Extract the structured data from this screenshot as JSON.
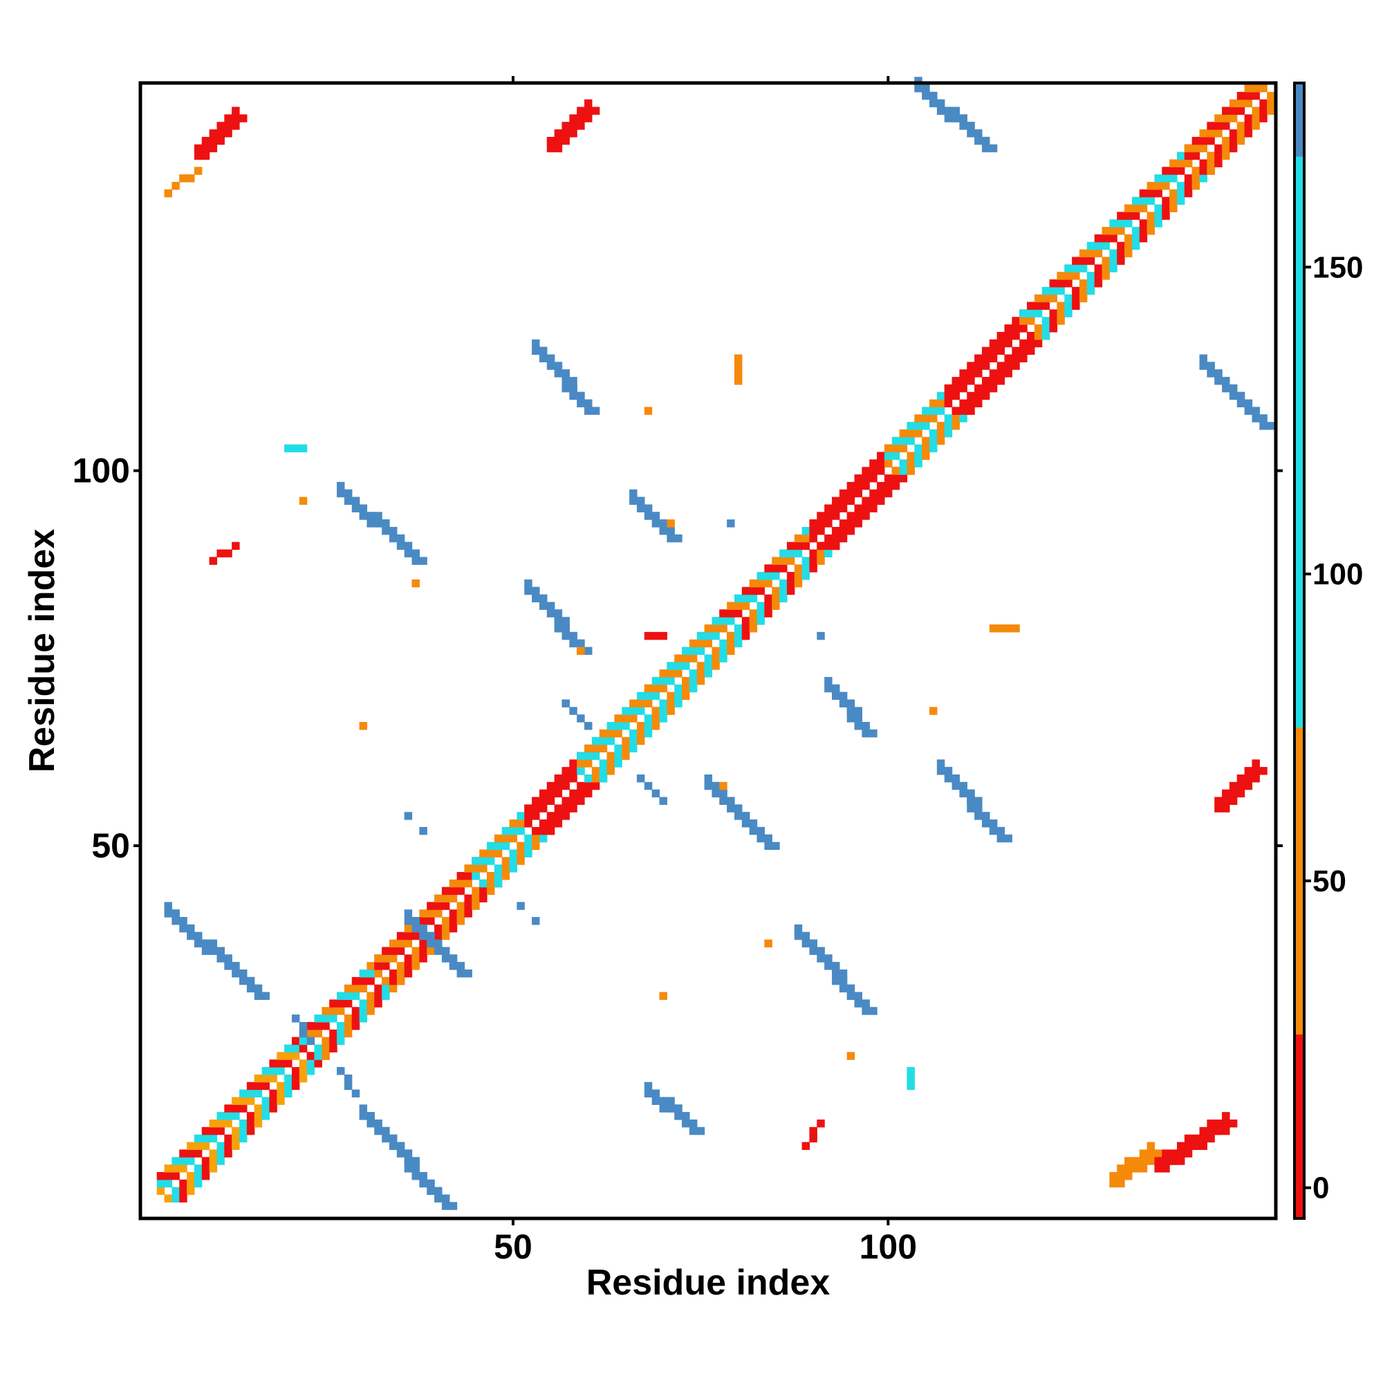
{
  "chart_data": {
    "type": "heatmap",
    "title": "",
    "xlabel": "Residue index",
    "ylabel": "Residue index",
    "xlim": [
      1,
      151
    ],
    "ylim": [
      1,
      151
    ],
    "xticks": [
      50,
      100
    ],
    "yticks": [
      50,
      100
    ],
    "grid": false,
    "colorbar": {
      "ticks": [
        0,
        50,
        100,
        150
      ],
      "range": [
        -5,
        180
      ],
      "colors": [
        {
          "from": -5,
          "to": 25,
          "color": "#ee1111"
        },
        {
          "from": 25,
          "to": 75,
          "color": "#f58a0a"
        },
        {
          "from": 75,
          "to": 168,
          "color": "#22dde6"
        },
        {
          "from": 168,
          "to": 180,
          "color": "#4a8ac4"
        }
      ]
    },
    "diagonal_band": {
      "bands": [
        {
          "from": 3,
          "to": 22,
          "colors": [
            "#ee1111",
            "#f7a20a",
            "#22dde6"
          ]
        },
        {
          "from": 22,
          "to": 32,
          "colors": [
            "#22dde6",
            "#f58a0a",
            "#ee1111"
          ]
        },
        {
          "from": 32,
          "to": 45,
          "colors": [
            "#ee1111",
            "#f58a0a"
          ]
        },
        {
          "from": 45,
          "to": 52,
          "colors": [
            "#22dde6",
            "#f58a0a"
          ]
        },
        {
          "from": 52,
          "to": 59,
          "colors": [
            "#ee1111"
          ]
        },
        {
          "from": 59,
          "to": 68,
          "colors": [
            "#22dde6",
            "#f58a0a"
          ]
        },
        {
          "from": 68,
          "to": 78,
          "colors": [
            "#22dde6",
            "#f58a0a"
          ]
        },
        {
          "from": 78,
          "to": 90,
          "colors": [
            "#ee1111",
            "#f58a0a",
            "#22dde6"
          ]
        },
        {
          "from": 90,
          "to": 100,
          "colors": [
            "#ee1111"
          ]
        },
        {
          "from": 100,
          "to": 108,
          "colors": [
            "#22dde6",
            "#f58a0a"
          ]
        },
        {
          "from": 108,
          "to": 118,
          "colors": [
            "#ee1111"
          ]
        },
        {
          "from": 118,
          "to": 140,
          "colors": [
            "#f58a0a",
            "#22dde6",
            "#ee1111"
          ]
        },
        {
          "from": 140,
          "to": 151,
          "colors": [
            "#ee1111",
            "#f58a0a"
          ]
        }
      ]
    },
    "off_diagonal_segments": [
      {
        "start": [
          36,
          40
        ],
        "end": [
          43,
          33
        ],
        "color": "#4a8ac4"
      },
      {
        "start": [
          68,
          17
        ],
        "end": [
          74,
          12
        ],
        "color": "#4a8ac4"
      },
      {
        "start": [
          4,
          41
        ],
        "end": [
          16,
          30
        ],
        "color": "#4a8ac4"
      },
      {
        "start": [
          30,
          14
        ],
        "end": [
          41,
          2
        ],
        "color": "#4a8ac4"
      },
      {
        "start": [
          27,
          97
        ],
        "end": [
          37,
          88
        ],
        "color": "#4a8ac4"
      },
      {
        "start": [
          52,
          84
        ],
        "end": [
          59,
          76
        ],
        "color": "#4a8ac4"
      },
      {
        "start": [
          53,
          116
        ],
        "end": [
          60,
          108
        ],
        "color": "#4a8ac4"
      },
      {
        "start": [
          66,
          96
        ],
        "end": [
          71,
          91
        ],
        "color": "#4a8ac4"
      },
      {
        "start": [
          76,
          58
        ],
        "end": [
          84,
          50
        ],
        "color": "#4a8ac4"
      },
      {
        "start": [
          88,
          38
        ],
        "end": [
          97,
          28
        ],
        "color": "#4a8ac4"
      },
      {
        "start": [
          92,
          71
        ],
        "end": [
          97,
          65
        ],
        "color": "#4a8ac4"
      },
      {
        "start": [
          107,
          60
        ],
        "end": [
          115,
          51
        ],
        "color": "#4a8ac4"
      },
      {
        "start": [
          104,
          151
        ],
        "end": [
          113,
          143
        ],
        "color": "#4a8ac4"
      },
      {
        "start": [
          142,
          114
        ],
        "end": [
          150,
          106
        ],
        "color": "#4a8ac4"
      },
      {
        "start": [
          21,
          27
        ],
        "end": [
          23,
          24
        ],
        "color": "#4a8ac4"
      },
      {
        "start": [
          27,
          20
        ],
        "end": [
          29,
          17
        ],
        "color": "#4a8ac4"
      },
      {
        "start": [
          57,
          69
        ],
        "end": [
          60,
          66
        ],
        "color": "#4a8ac4"
      },
      {
        "start": [
          67,
          59
        ],
        "end": [
          70,
          56
        ],
        "color": "#4a8ac4"
      },
      {
        "start": [
          4,
          137
        ],
        "end": [
          8,
          140
        ],
        "color": "#f58a0a"
      },
      {
        "start": [
          8,
          142
        ],
        "end": [
          13,
          147
        ],
        "color": "#ee1111"
      },
      {
        "start": [
          55,
          143
        ],
        "end": [
          60,
          148
        ],
        "color": "#ee1111"
      },
      {
        "start": [
          130,
          5
        ],
        "end": [
          135,
          9
        ],
        "color": "#f58a0a"
      },
      {
        "start": [
          136,
          7
        ],
        "end": [
          145,
          13
        ],
        "color": "#ee1111"
      },
      {
        "start": [
          144,
          55
        ],
        "end": [
          149,
          60
        ],
        "color": "#ee1111"
      },
      {
        "start": [
          10,
          88
        ],
        "end": [
          13,
          90
        ],
        "color": "#ee1111"
      },
      {
        "start": [
          89,
          10
        ],
        "end": [
          91,
          13
        ],
        "color": "#ee1111"
      },
      {
        "start": [
          114,
          79
        ],
        "end": [
          117,
          79
        ],
        "color": "#f58a0a"
      },
      {
        "start": [
          68,
          78
        ],
        "end": [
          70,
          78
        ],
        "color": "#ee1111"
      },
      {
        "start": [
          80,
          115
        ],
        "end": [
          80,
          112
        ],
        "color": "#f58a0a"
      },
      {
        "start": [
          20,
          103
        ],
        "end": [
          22,
          103
        ],
        "color": "#22dde6"
      },
      {
        "start": [
          103,
          20
        ],
        "end": [
          103,
          18
        ],
        "color": "#22dde6"
      }
    ],
    "scatter_cells": [
      {
        "x": 30,
        "y": 66,
        "color": "#f58a0a"
      },
      {
        "x": 22,
        "y": 96,
        "color": "#f58a0a"
      },
      {
        "x": 37,
        "y": 85,
        "color": "#f58a0a"
      },
      {
        "x": 68,
        "y": 108,
        "color": "#f58a0a"
      },
      {
        "x": 71,
        "y": 93,
        "color": "#f58a0a"
      },
      {
        "x": 78,
        "y": 58,
        "color": "#f58a0a"
      },
      {
        "x": 84,
        "y": 37,
        "color": "#f58a0a"
      },
      {
        "x": 70,
        "y": 30,
        "color": "#f58a0a"
      },
      {
        "x": 95,
        "y": 22,
        "color": "#f58a0a"
      },
      {
        "x": 106,
        "y": 68,
        "color": "#f58a0a"
      },
      {
        "x": 59,
        "y": 76,
        "color": "#f58a0a"
      },
      {
        "x": 79,
        "y": 93,
        "color": "#4a8ac4"
      },
      {
        "x": 91,
        "y": 78,
        "color": "#4a8ac4"
      },
      {
        "x": 36,
        "y": 54,
        "color": "#4a8ac4"
      },
      {
        "x": 38,
        "y": 52,
        "color": "#4a8ac4"
      },
      {
        "x": 51,
        "y": 42,
        "color": "#4a8ac4"
      },
      {
        "x": 53,
        "y": 40,
        "color": "#4a8ac4"
      }
    ]
  }
}
